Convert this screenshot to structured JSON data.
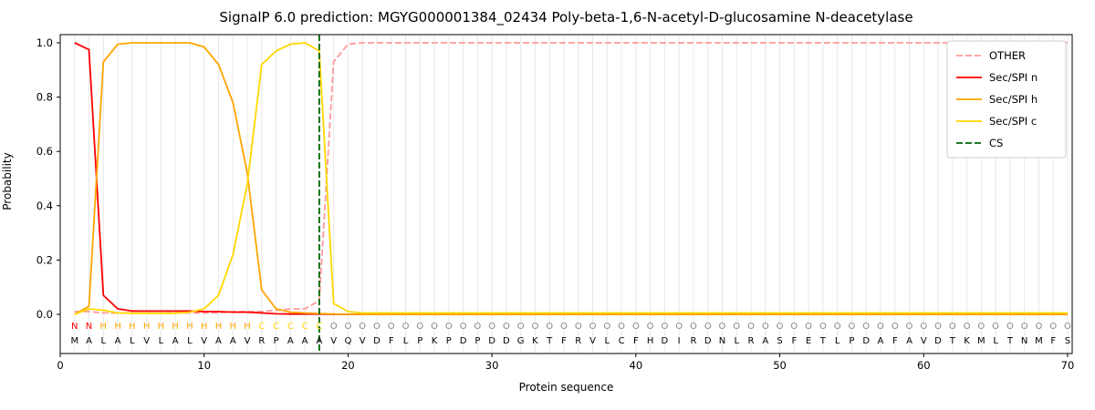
{
  "chart_data": {
    "type": "line",
    "title": "SignalP 6.0 prediction: MGYG000001384_02434 Poly-beta-1,6-N-acetyl-D-glucosamine N-deacetylase",
    "xlabel": "Protein sequence",
    "ylabel": "Probability",
    "xlim": [
      0,
      70.3
    ],
    "ylim": [
      -0.145,
      1.03
    ],
    "xticks": [
      0,
      10,
      20,
      30,
      40,
      50,
      60,
      70
    ],
    "yticks": [
      0,
      0.2,
      0.4,
      0.6,
      0.8,
      1.0
    ],
    "grid": {
      "vertical_per_residue": true,
      "color": "#e8e8e8"
    },
    "legend_position": "upper right",
    "x": [
      1,
      2,
      3,
      4,
      5,
      6,
      7,
      8,
      9,
      10,
      11,
      12,
      13,
      14,
      15,
      16,
      17,
      18,
      19,
      20,
      21,
      22,
      23,
      24,
      25,
      26,
      27,
      28,
      29,
      30,
      31,
      32,
      33,
      34,
      35,
      36,
      37,
      38,
      39,
      40,
      41,
      42,
      43,
      44,
      45,
      46,
      47,
      48,
      49,
      50,
      51,
      52,
      53,
      54,
      55,
      56,
      57,
      58,
      59,
      60,
      61,
      62,
      63,
      64,
      65,
      66,
      67,
      68,
      69,
      70
    ],
    "series": [
      {
        "name": "OTHER",
        "color": "#ff9999",
        "dash": true,
        "values": [
          0.01,
          0.01,
          0.005,
          0.005,
          0.005,
          0.005,
          0.005,
          0.005,
          0.005,
          0.005,
          0.005,
          0.01,
          0.01,
          0.01,
          0.015,
          0.02,
          0.02,
          0.05,
          0.93,
          0.995,
          1,
          1,
          1,
          1,
          1,
          1,
          1,
          1,
          1,
          1,
          1,
          1,
          1,
          1,
          1,
          1,
          1,
          1,
          1,
          1,
          1,
          1,
          1,
          1,
          1,
          1,
          1,
          1,
          1,
          1,
          1,
          1,
          1,
          1,
          1,
          1,
          1,
          1,
          1,
          1,
          1,
          1,
          1,
          1,
          1,
          1,
          1,
          1,
          1,
          1
        ]
      },
      {
        "name": "Sec/SPI n",
        "color": "#ff0000",
        "dash": false,
        "values": [
          1.0,
          0.975,
          0.07,
          0.02,
          0.012,
          0.012,
          0.012,
          0.012,
          0.012,
          0.01,
          0.01,
          0.008,
          0.008,
          0.005,
          0.002,
          0.001,
          0.001,
          0.001,
          0,
          0,
          0,
          0,
          0,
          0,
          0,
          0,
          0,
          0,
          0,
          0,
          0,
          0,
          0,
          0,
          0,
          0,
          0,
          0,
          0,
          0,
          0,
          0,
          0,
          0,
          0,
          0,
          0,
          0,
          0,
          0,
          0,
          0,
          0,
          0,
          0,
          0,
          0,
          0,
          0,
          0,
          0,
          0,
          0,
          0,
          0,
          0,
          0,
          0,
          0,
          0
        ]
      },
      {
        "name": "Sec/SPI h",
        "color": "#ffa500",
        "dash": false,
        "values": [
          0,
          0.03,
          0.93,
          0.995,
          1,
          1,
          1,
          1,
          1,
          0.985,
          0.92,
          0.78,
          0.52,
          0.09,
          0.02,
          0.008,
          0.005,
          0.003,
          0.001,
          0,
          0,
          0,
          0,
          0,
          0,
          0,
          0,
          0,
          0,
          0,
          0,
          0,
          0,
          0,
          0,
          0,
          0,
          0,
          0,
          0,
          0,
          0,
          0,
          0,
          0,
          0,
          0,
          0,
          0,
          0,
          0,
          0,
          0,
          0,
          0,
          0,
          0,
          0,
          0,
          0,
          0,
          0,
          0,
          0,
          0,
          0,
          0,
          0,
          0,
          0
        ]
      },
      {
        "name": "Sec/SPI c",
        "color": "#ffd700",
        "dash": false,
        "values": [
          0,
          0.02,
          0.015,
          0.005,
          0.004,
          0.004,
          0.004,
          0.004,
          0.008,
          0.02,
          0.07,
          0.22,
          0.48,
          0.92,
          0.97,
          0.995,
          1,
          0.97,
          0.04,
          0.01,
          0.005,
          0.005,
          0.005,
          0.005,
          0.005,
          0.005,
          0.005,
          0.005,
          0.005,
          0.005,
          0.005,
          0.005,
          0.005,
          0.005,
          0.005,
          0.005,
          0.005,
          0.005,
          0.005,
          0.005,
          0.005,
          0.005,
          0.005,
          0.005,
          0.005,
          0.005,
          0.005,
          0.005,
          0.005,
          0.005,
          0.005,
          0.005,
          0.005,
          0.005,
          0.005,
          0.005,
          0.005,
          0.005,
          0.005,
          0.005,
          0.005,
          0.005,
          0.005,
          0.005,
          0.005,
          0.005,
          0.005,
          0.005,
          0.005,
          0.005
        ]
      }
    ],
    "cs_marker": {
      "name": "CS",
      "x": 18,
      "color": "#006400",
      "dash": true
    },
    "residues": {
      "sequence": "MALALVLALVAAVRPAAAVQVDFLPKPDPDDGKTFRVLCFHDIRDNLRASFETLPDAFAVDTKMLTNMFS",
      "class_regions": [
        {
          "label": "N",
          "from": 1,
          "to": 2
        },
        {
          "label": "H",
          "from": 3,
          "to": 13
        },
        {
          "label": "C",
          "from": 14,
          "to": 18
        },
        {
          "label": "O",
          "from": 19,
          "to": 70
        }
      ],
      "class_colors": {
        "N": "#ff0000",
        "H": "#ffa500",
        "C": "#ffd700",
        "O": "#888888"
      }
    }
  }
}
